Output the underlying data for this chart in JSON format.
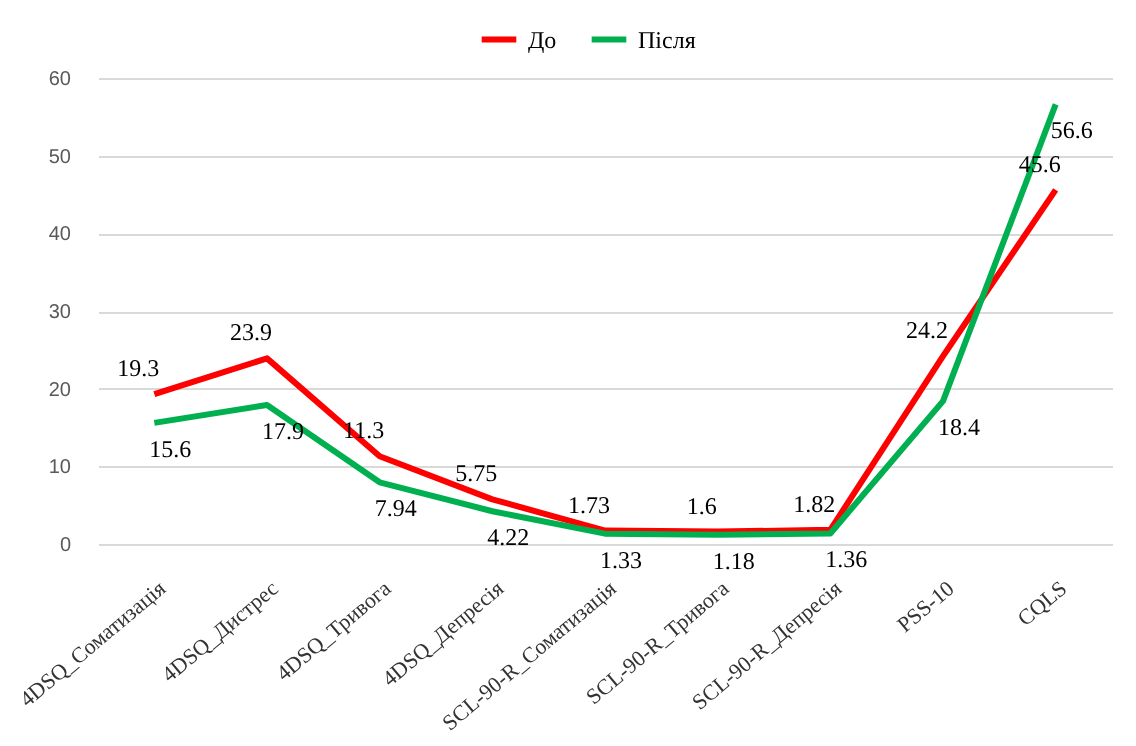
{
  "chart_data": {
    "type": "line",
    "categories": [
      "4DSQ_Соматизація",
      "4DSQ_Дистрес",
      "4DSQ_Тривога",
      "4DSQ_Депресія",
      "SCL-90-R_Соматизація",
      "SCL-90-R_Тривога",
      "SCL-90-R_Депресія",
      "PSS-10",
      "CQLS"
    ],
    "series": [
      {
        "name": "До",
        "color": "#ff0000",
        "values": [
          19.3,
          23.9,
          11.3,
          5.75,
          1.73,
          1.6,
          1.82,
          24.2,
          45.6
        ]
      },
      {
        "name": "Після",
        "color": "#00b050",
        "values": [
          15.6,
          17.9,
          7.94,
          4.22,
          1.33,
          1.18,
          1.36,
          18.4,
          56.6
        ]
      }
    ],
    "ylim": [
      0,
      60
    ],
    "yticks": [
      0,
      10,
      20,
      30,
      40,
      50,
      60
    ],
    "grid": "y",
    "legend": "top",
    "data_labels": true,
    "marker": "none",
    "line_style": "solid"
  }
}
